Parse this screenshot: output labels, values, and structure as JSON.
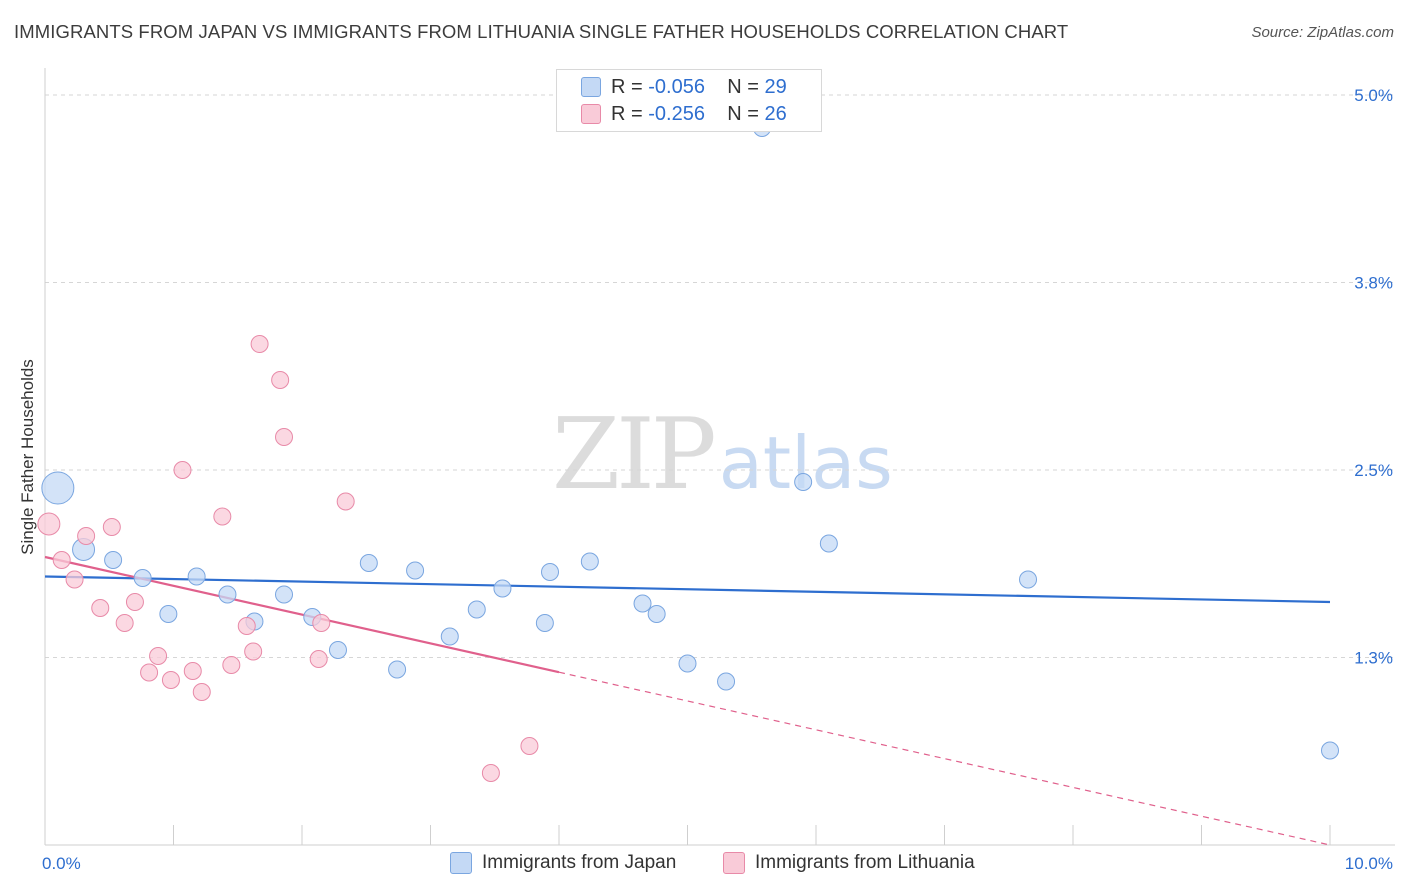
{
  "header": {
    "title": "IMMIGRANTS FROM JAPAN VS IMMIGRANTS FROM LITHUANIA SINGLE FATHER HOUSEHOLDS CORRELATION CHART",
    "source": "Source: ZipAtlas.com"
  },
  "watermark": {
    "zip": "ZIP",
    "atlas": "atlas"
  },
  "colors": {
    "japan_fill": "#c4d9f5",
    "japan_stroke": "#7aa6e0",
    "japan_line": "#2e6ecf",
    "lithuania_fill": "#f9cbd8",
    "lithuania_stroke": "#e88aa8",
    "lithuania_line": "#e0608c",
    "tick_label": "#2e6ecf",
    "grid": "#d6d6d6"
  },
  "legend_top": {
    "r_label": "R =",
    "n_label": "N =",
    "japan": {
      "r": "-0.056",
      "n": "29"
    },
    "lithuania": {
      "r": "-0.256",
      "n": "26"
    }
  },
  "legend_bottom": {
    "japan": "Immigrants from Japan",
    "lithuania": "Immigrants from Lithuania"
  },
  "chart_data": {
    "type": "scatter",
    "title": "IMMIGRANTS FROM JAPAN VS IMMIGRANTS FROM LITHUANIA SINGLE FATHER HOUSEHOLDS CORRELATION CHART",
    "xlabel": "",
    "ylabel": "Single Father Households",
    "xlim": [
      0,
      10
    ],
    "ylim": [
      0,
      5.1
    ],
    "x_tick_labels": [
      {
        "value": 0,
        "label": "0.0%"
      },
      {
        "value": 10,
        "label": "10.0%"
      }
    ],
    "y_ticks": [
      {
        "value": 1.25,
        "label": "1.3%"
      },
      {
        "value": 2.5,
        "label": "2.5%"
      },
      {
        "value": 3.75,
        "label": "3.8%"
      },
      {
        "value": 5.0,
        "label": "5.0%"
      }
    ],
    "legend": "top-center",
    "series": [
      {
        "name": "Immigrants from Japan",
        "r": -0.056,
        "n": 29,
        "trend": {
          "x1": 0,
          "y1": 1.79,
          "x2": 10,
          "y2": 1.62,
          "dashed_from": null
        },
        "points": [
          {
            "x": 0.1,
            "y": 2.38,
            "size": 3
          },
          {
            "x": 0.3,
            "y": 1.97,
            "size": 2
          },
          {
            "x": 0.53,
            "y": 1.9,
            "size": 1
          },
          {
            "x": 0.76,
            "y": 1.78,
            "size": 1
          },
          {
            "x": 0.96,
            "y": 1.54,
            "size": 1
          },
          {
            "x": 1.18,
            "y": 1.79,
            "size": 1
          },
          {
            "x": 1.42,
            "y": 1.67,
            "size": 1
          },
          {
            "x": 1.63,
            "y": 1.49,
            "size": 1
          },
          {
            "x": 1.86,
            "y": 1.67,
            "size": 1
          },
          {
            "x": 2.08,
            "y": 1.52,
            "size": 1
          },
          {
            "x": 2.28,
            "y": 1.3,
            "size": 1
          },
          {
            "x": 2.52,
            "y": 1.88,
            "size": 1
          },
          {
            "x": 2.74,
            "y": 1.17,
            "size": 1
          },
          {
            "x": 2.88,
            "y": 1.83,
            "size": 1
          },
          {
            "x": 3.15,
            "y": 1.39,
            "size": 1
          },
          {
            "x": 3.36,
            "y": 1.57,
            "size": 1
          },
          {
            "x": 3.56,
            "y": 1.71,
            "size": 1
          },
          {
            "x": 3.89,
            "y": 1.48,
            "size": 1
          },
          {
            "x": 3.93,
            "y": 1.82,
            "size": 1
          },
          {
            "x": 4.24,
            "y": 1.89,
            "size": 1
          },
          {
            "x": 4.65,
            "y": 1.61,
            "size": 1
          },
          {
            "x": 4.76,
            "y": 1.54,
            "size": 1
          },
          {
            "x": 5.0,
            "y": 1.21,
            "size": 1
          },
          {
            "x": 5.3,
            "y": 1.09,
            "size": 1
          },
          {
            "x": 5.58,
            "y": 4.78,
            "size": 1
          },
          {
            "x": 5.9,
            "y": 2.42,
            "size": 1
          },
          {
            "x": 6.1,
            "y": 2.01,
            "size": 1
          },
          {
            "x": 7.65,
            "y": 1.77,
            "size": 1
          },
          {
            "x": 10.0,
            "y": 0.63,
            "size": 1
          }
        ]
      },
      {
        "name": "Immigrants from Lithuania",
        "r": -0.256,
        "n": 26,
        "trend": {
          "x1": 0,
          "y1": 1.92,
          "x2": 10,
          "y2": 0,
          "dashed_from": 4.0
        },
        "points": [
          {
            "x": 0.03,
            "y": 2.14,
            "size": 2
          },
          {
            "x": 0.13,
            "y": 1.9,
            "size": 1
          },
          {
            "x": 0.23,
            "y": 1.77,
            "size": 1
          },
          {
            "x": 0.32,
            "y": 2.06,
            "size": 1
          },
          {
            "x": 0.43,
            "y": 1.58,
            "size": 1
          },
          {
            "x": 0.52,
            "y": 2.12,
            "size": 1
          },
          {
            "x": 0.62,
            "y": 1.48,
            "size": 1
          },
          {
            "x": 0.7,
            "y": 1.62,
            "size": 1
          },
          {
            "x": 0.81,
            "y": 1.15,
            "size": 1
          },
          {
            "x": 0.88,
            "y": 1.26,
            "size": 1
          },
          {
            "x": 0.98,
            "y": 1.1,
            "size": 1
          },
          {
            "x": 1.07,
            "y": 2.5,
            "size": 1
          },
          {
            "x": 1.15,
            "y": 1.16,
            "size": 1
          },
          {
            "x": 1.22,
            "y": 1.02,
            "size": 1
          },
          {
            "x": 1.38,
            "y": 2.19,
            "size": 1
          },
          {
            "x": 1.45,
            "y": 1.2,
            "size": 1
          },
          {
            "x": 1.57,
            "y": 1.46,
            "size": 1
          },
          {
            "x": 1.62,
            "y": 1.29,
            "size": 1
          },
          {
            "x": 1.67,
            "y": 3.34,
            "size": 1
          },
          {
            "x": 1.83,
            "y": 3.1,
            "size": 1
          },
          {
            "x": 1.86,
            "y": 2.72,
            "size": 1
          },
          {
            "x": 2.13,
            "y": 1.24,
            "size": 1
          },
          {
            "x": 2.15,
            "y": 1.48,
            "size": 1
          },
          {
            "x": 2.34,
            "y": 2.29,
            "size": 1
          },
          {
            "x": 3.47,
            "y": 0.48,
            "size": 1
          },
          {
            "x": 3.77,
            "y": 0.66,
            "size": 1
          }
        ]
      }
    ]
  }
}
